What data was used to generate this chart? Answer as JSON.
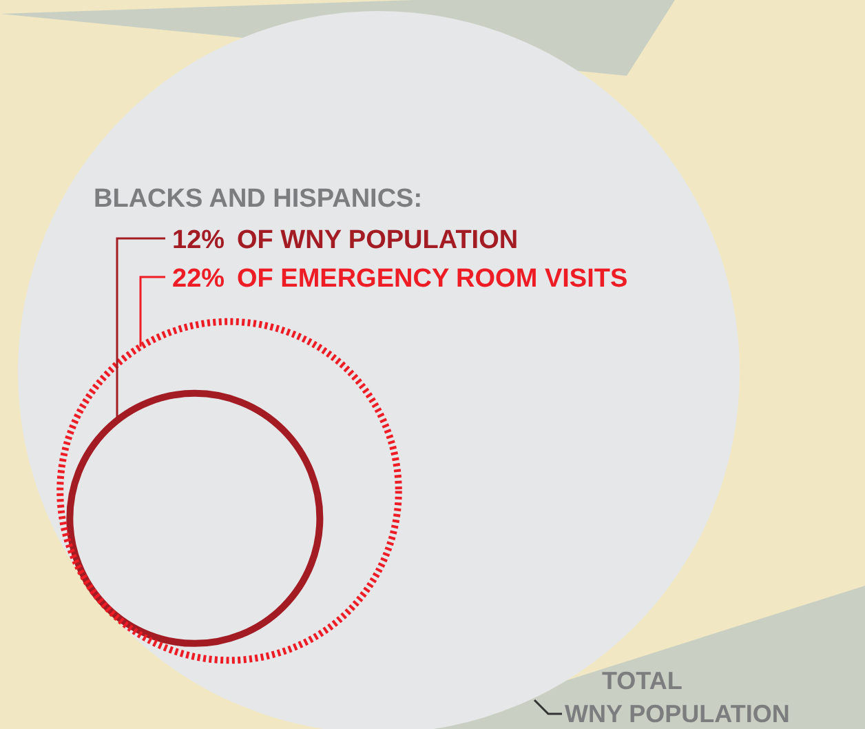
{
  "chart_data": {
    "type": "other",
    "title": "BLACKS AND HISPANICS:",
    "categories": [
      "OF WNY POPULATION",
      "OF EMERGENCY ROOM VISITS"
    ],
    "values": [
      12,
      22
    ],
    "value_labels": [
      "12%",
      "22%"
    ],
    "colors": [
      "#a31c24",
      "#ee1c25"
    ],
    "annotations": [
      "TOTAL WNY POPULATION"
    ]
  }
}
